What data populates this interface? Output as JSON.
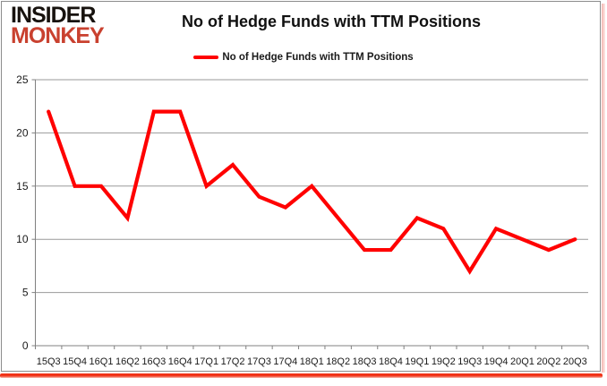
{
  "logo": {
    "line1": "INSIDER",
    "line2": "MONKEY"
  },
  "title": "No of Hedge Funds with TTM Positions",
  "legend": {
    "label": "No of Hedge Funds with TTM Positions",
    "color": "#ff0000"
  },
  "colors": {
    "line": "#ff0000",
    "grid": "#9a9a9a",
    "axis": "#808080",
    "tick_text": "#1a1a1a",
    "logo_black": "#17120e",
    "logo_red": "#c9412f",
    "border": "#8c8c8c",
    "shadow_red": "#f42a0c",
    "shadow_pink": "#f5b4ae"
  },
  "chart_data": {
    "type": "line",
    "title": "No of Hedge Funds with TTM Positions",
    "xlabel": "",
    "ylabel": "",
    "categories": [
      "15Q3",
      "15Q4",
      "16Q1",
      "16Q2",
      "16Q3",
      "16Q4",
      "17Q1",
      "17Q2",
      "17Q3",
      "17Q4",
      "18Q1",
      "18Q2",
      "18Q3",
      "18Q4",
      "19Q1",
      "19Q2",
      "19Q3",
      "19Q4",
      "20Q1",
      "20Q2",
      "20Q3"
    ],
    "series": [
      {
        "name": "No of Hedge Funds with TTM Positions",
        "color": "#ff0000",
        "values": [
          22,
          15,
          15,
          12,
          22,
          22,
          15,
          17,
          14,
          13,
          15,
          12,
          9,
          9,
          12,
          11,
          7,
          11,
          10,
          9,
          10
        ]
      }
    ],
    "ylim": [
      0,
      25
    ],
    "yticks": [
      0,
      5,
      10,
      15,
      20,
      25
    ],
    "grid": true,
    "legend_position": "top"
  }
}
